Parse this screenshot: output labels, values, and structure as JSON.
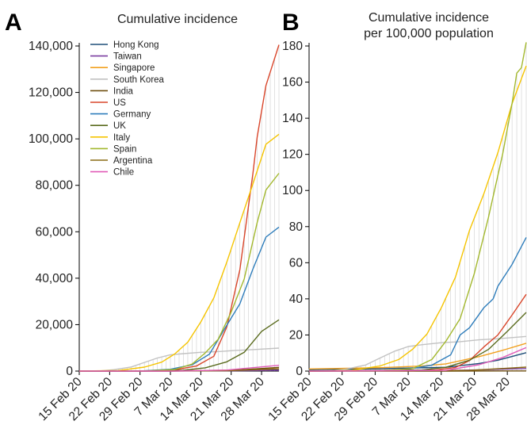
{
  "chart_data": [
    {
      "type": "line",
      "panel_label": "A",
      "title": "Cumulative incidence",
      "xlabel": "",
      "ylabel": "",
      "x_tick_labels": [
        "15 Feb 20",
        "22 Feb 20",
        "29 Feb 20",
        "7 Mar 20",
        "14 Mar 20",
        "21 Mar 20",
        "28 Mar 20"
      ],
      "y_tick_labels": [
        "0",
        "20,000",
        "40,000",
        "60,000",
        "80,000",
        "100,000",
        "120,000",
        "140,000"
      ],
      "ylim": [
        0,
        140000
      ],
      "xlim": [
        "2020-02-15",
        "2020-04-01"
      ],
      "grid": false,
      "legend_position": "top-left",
      "series": [
        {
          "name": "Hong Kong",
          "color": "#1f4e79",
          "points": [
            [
              "2020-02-15",
              56
            ],
            [
              "2020-03-01",
              100
            ],
            [
              "2020-03-15",
              157
            ],
            [
              "2020-03-22",
              318
            ],
            [
              "2020-04-01",
              765
            ]
          ]
        },
        {
          "name": "Taiwan",
          "color": "#7b3fa0",
          "points": [
            [
              "2020-02-15",
              18
            ],
            [
              "2020-03-01",
              40
            ],
            [
              "2020-03-15",
              59
            ],
            [
              "2020-03-22",
              169
            ],
            [
              "2020-04-01",
              329
            ]
          ]
        },
        {
          "name": "Singapore",
          "color": "#f2a01e",
          "points": [
            [
              "2020-02-15",
              67
            ],
            [
              "2020-03-01",
              106
            ],
            [
              "2020-03-15",
              226
            ],
            [
              "2020-03-22",
              455
            ],
            [
              "2020-04-01",
              1000
            ]
          ]
        },
        {
          "name": "South Korea",
          "color": "#c2c2c2",
          "points": [
            [
              "2020-02-15",
              28
            ],
            [
              "2020-02-20",
              104
            ],
            [
              "2020-02-23",
              602
            ],
            [
              "2020-02-27",
              1766
            ],
            [
              "2020-03-01",
              3736
            ],
            [
              "2020-03-04",
              5621
            ],
            [
              "2020-03-07",
              7041
            ],
            [
              "2020-03-10",
              7513
            ],
            [
              "2020-03-14",
              8086
            ],
            [
              "2020-03-18",
              8413
            ],
            [
              "2020-03-22",
              8897
            ],
            [
              "2020-03-26",
              9241
            ],
            [
              "2020-04-01",
              9887
            ]
          ]
        },
        {
          "name": "India",
          "color": "#6e4e0e",
          "points": [
            [
              "2020-02-15",
              3
            ],
            [
              "2020-03-07",
              34
            ],
            [
              "2020-03-15",
              110
            ],
            [
              "2020-03-22",
              396
            ],
            [
              "2020-04-01",
              1600
            ]
          ]
        },
        {
          "name": "US",
          "color": "#d9462b",
          "points": [
            [
              "2020-02-15",
              15
            ],
            [
              "2020-03-01",
              75
            ],
            [
              "2020-03-08",
              500
            ],
            [
              "2020-03-13",
              2200
            ],
            [
              "2020-03-17",
              6400
            ],
            [
              "2020-03-20",
              19100
            ],
            [
              "2020-03-23",
              43700
            ],
            [
              "2020-03-26",
              85000
            ],
            [
              "2020-03-27",
              101000
            ],
            [
              "2020-03-29",
              123000
            ],
            [
              "2020-04-01",
              140500
            ]
          ]
        },
        {
          "name": "Germany",
          "color": "#2e7dbb",
          "points": [
            [
              "2020-02-15",
              16
            ],
            [
              "2020-03-01",
              130
            ],
            [
              "2020-03-07",
              800
            ],
            [
              "2020-03-12",
              2700
            ],
            [
              "2020-03-16",
              7300
            ],
            [
              "2020-03-20",
              19800
            ],
            [
              "2020-03-23",
              29000
            ],
            [
              "2020-03-26",
              43900
            ],
            [
              "2020-03-29",
              57700
            ],
            [
              "2020-04-01",
              62000
            ]
          ]
        },
        {
          "name": "UK",
          "color": "#5a6b1e",
          "points": [
            [
              "2020-02-15",
              9
            ],
            [
              "2020-03-01",
              36
            ],
            [
              "2020-03-10",
              373
            ],
            [
              "2020-03-15",
              1400
            ],
            [
              "2020-03-20",
              4000
            ],
            [
              "2020-03-24",
              8100
            ],
            [
              "2020-03-28",
              17100
            ],
            [
              "2020-04-01",
              22100
            ]
          ]
        },
        {
          "name": "Italy",
          "color": "#f5c400",
          "points": [
            [
              "2020-02-15",
              3
            ],
            [
              "2020-02-24",
              229
            ],
            [
              "2020-03-01",
              1694
            ],
            [
              "2020-03-05",
              3858
            ],
            [
              "2020-03-08",
              7375
            ],
            [
              "2020-03-11",
              12462
            ],
            [
              "2020-03-14",
              21157
            ],
            [
              "2020-03-17",
              31506
            ],
            [
              "2020-03-20",
              47021
            ],
            [
              "2020-03-23",
              63927
            ],
            [
              "2020-03-26",
              80589
            ],
            [
              "2020-03-29",
              97689
            ],
            [
              "2020-04-01",
              102000
            ]
          ]
        },
        {
          "name": "Spain",
          "color": "#a3b82e",
          "points": [
            [
              "2020-02-15",
              2
            ],
            [
              "2020-03-01",
              84
            ],
            [
              "2020-03-08",
              673
            ],
            [
              "2020-03-12",
              3000
            ],
            [
              "2020-03-15",
              7800
            ],
            [
              "2020-03-18",
              13700
            ],
            [
              "2020-03-21",
              25400
            ],
            [
              "2020-03-24",
              39700
            ],
            [
              "2020-03-27",
              64100
            ],
            [
              "2020-03-29",
              78000
            ],
            [
              "2020-04-01",
              85200
            ]
          ]
        },
        {
          "name": "Argentina",
          "color": "#8a6a14",
          "points": [
            [
              "2020-02-15",
              0
            ],
            [
              "2020-03-07",
              12
            ],
            [
              "2020-03-20",
              158
            ],
            [
              "2020-04-01",
              1000
            ]
          ]
        },
        {
          "name": "Chile",
          "color": "#e05ab8",
          "points": [
            [
              "2020-02-15",
              0
            ],
            [
              "2020-03-07",
              7
            ],
            [
              "2020-03-20",
              434
            ],
            [
              "2020-04-01",
              2500
            ]
          ]
        }
      ]
    },
    {
      "type": "line",
      "panel_label": "B",
      "title": "Cumulative incidence per 100,000 population",
      "title_lines": [
        "Cumulative incidence",
        "per 100,000 population"
      ],
      "xlabel": "",
      "ylabel": "",
      "x_tick_labels": [
        "15 Feb 20",
        "22 Feb 20",
        "29 Feb 20",
        "7 Mar 20",
        "14 Mar 20",
        "21 Mar 20",
        "28 Mar 20"
      ],
      "y_tick_labels": [
        "0",
        "20",
        "40",
        "60",
        "80",
        "100",
        "120",
        "140",
        "160",
        "180"
      ],
      "ylim": [
        0,
        180
      ],
      "xlim": [
        "2020-02-15",
        "2020-04-01"
      ],
      "grid": false,
      "series": [
        {
          "name": "Hong Kong",
          "color": "#1f4e79",
          "points": [
            [
              "2020-02-15",
              0.8
            ],
            [
              "2020-03-01",
              1.3
            ],
            [
              "2020-03-15",
              2.1
            ],
            [
              "2020-03-22",
              4.2
            ],
            [
              "2020-03-26",
              6
            ],
            [
              "2020-04-01",
              10.2
            ]
          ]
        },
        {
          "name": "Taiwan",
          "color": "#7b3fa0",
          "points": [
            [
              "2020-02-15",
              0.1
            ],
            [
              "2020-03-15",
              0.3
            ],
            [
              "2020-03-22",
              0.7
            ],
            [
              "2020-04-01",
              1.4
            ]
          ]
        },
        {
          "name": "Singapore",
          "color": "#f2a01e",
          "points": [
            [
              "2020-02-15",
              1.2
            ],
            [
              "2020-03-01",
              1.9
            ],
            [
              "2020-03-10",
              2.8
            ],
            [
              "2020-03-15",
              4
            ],
            [
              "2020-03-22",
              8
            ],
            [
              "2020-03-27",
              11.5
            ],
            [
              "2020-04-01",
              15.4
            ]
          ]
        },
        {
          "name": "South Korea",
          "color": "#c2c2c2",
          "points": [
            [
              "2020-02-15",
              0.1
            ],
            [
              "2020-02-20",
              0.2
            ],
            [
              "2020-02-23",
              1.2
            ],
            [
              "2020-02-27",
              3.4
            ],
            [
              "2020-03-01",
              7.2
            ],
            [
              "2020-03-04",
              10.9
            ],
            [
              "2020-03-07",
              13.6
            ],
            [
              "2020-03-10",
              14.6
            ],
            [
              "2020-03-14",
              15.7
            ],
            [
              "2020-03-18",
              16.3
            ],
            [
              "2020-03-22",
              17.3
            ],
            [
              "2020-03-26",
              17.9
            ],
            [
              "2020-04-01",
              19.2
            ]
          ]
        },
        {
          "name": "India",
          "color": "#6e4e0e",
          "points": [
            [
              "2020-02-15",
              0
            ],
            [
              "2020-03-15",
              0
            ],
            [
              "2020-04-01",
              0.1
            ]
          ]
        },
        {
          "name": "US",
          "color": "#d9462b",
          "points": [
            [
              "2020-02-15",
              0
            ],
            [
              "2020-03-08",
              0.2
            ],
            [
              "2020-03-13",
              0.7
            ],
            [
              "2020-03-17",
              2
            ],
            [
              "2020-03-20",
              5.8
            ],
            [
              "2020-03-23",
              13.3
            ],
            [
              "2020-03-26",
              20
            ],
            [
              "2020-03-29",
              31
            ],
            [
              "2020-04-01",
              42.5
            ]
          ]
        },
        {
          "name": "Germany",
          "color": "#2e7dbb",
          "points": [
            [
              "2020-02-15",
              0
            ],
            [
              "2020-03-01",
              0.2
            ],
            [
              "2020-03-07",
              1
            ],
            [
              "2020-03-12",
              3.3
            ],
            [
              "2020-03-16",
              9
            ],
            [
              "2020-03-18",
              20
            ],
            [
              "2020-03-20",
              24
            ],
            [
              "2020-03-23",
              35
            ],
            [
              "2020-03-25",
              40
            ],
            [
              "2020-03-26",
              47
            ],
            [
              "2020-03-29",
              59
            ],
            [
              "2020-04-01",
              74
            ]
          ]
        },
        {
          "name": "UK",
          "color": "#5a6b1e",
          "points": [
            [
              "2020-02-15",
              0
            ],
            [
              "2020-03-10",
              0.6
            ],
            [
              "2020-03-15",
              2.1
            ],
            [
              "2020-03-20",
              6
            ],
            [
              "2020-03-24",
              12
            ],
            [
              "2020-03-28",
              22
            ],
            [
              "2020-04-01",
              32.5
            ]
          ]
        },
        {
          "name": "Italy",
          "color": "#f5c400",
          "points": [
            [
              "2020-02-15",
              0
            ],
            [
              "2020-02-24",
              0.4
            ],
            [
              "2020-03-01",
              2.8
            ],
            [
              "2020-03-05",
              6.4
            ],
            [
              "2020-03-08",
              12.2
            ],
            [
              "2020-03-11",
              20.6
            ],
            [
              "2020-03-14",
              35
            ],
            [
              "2020-03-17",
              52
            ],
            [
              "2020-03-20",
              78
            ],
            [
              "2020-03-23",
              98
            ],
            [
              "2020-03-26",
              121
            ],
            [
              "2020-03-29",
              148
            ],
            [
              "2020-04-01",
              169
            ]
          ]
        },
        {
          "name": "Spain",
          "color": "#a3b82e",
          "points": [
            [
              "2020-02-15",
              0
            ],
            [
              "2020-03-01",
              0.2
            ],
            [
              "2020-03-08",
              1.4
            ],
            [
              "2020-03-12",
              6.4
            ],
            [
              "2020-03-15",
              16.6
            ],
            [
              "2020-03-18",
              29
            ],
            [
              "2020-03-21",
              54
            ],
            [
              "2020-03-24",
              85
            ],
            [
              "2020-03-27",
              120
            ],
            [
              "2020-03-29",
              148
            ],
            [
              "2020-03-30",
              165
            ],
            [
              "2020-03-31",
              168
            ],
            [
              "2020-04-01",
              182
            ]
          ]
        },
        {
          "name": "Argentina",
          "color": "#8a6a14",
          "points": [
            [
              "2020-02-15",
              0
            ],
            [
              "2020-03-20",
              0.4
            ],
            [
              "2020-04-01",
              2.2
            ]
          ]
        },
        {
          "name": "Chile",
          "color": "#e05ab8",
          "points": [
            [
              "2020-02-15",
              0
            ],
            [
              "2020-03-15",
              0.4
            ],
            [
              "2020-03-22",
              3.5
            ],
            [
              "2020-03-27",
              7.5
            ],
            [
              "2020-04-01",
              13
            ]
          ]
        }
      ]
    }
  ]
}
